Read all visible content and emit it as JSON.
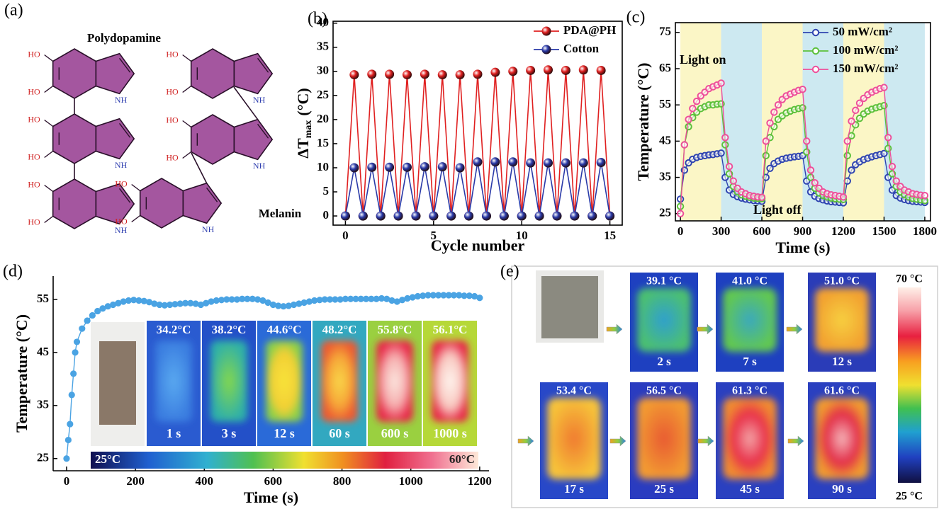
{
  "panel_a": {
    "label": "(a)",
    "name_1": "Polydopamine",
    "name_2": "Melanin",
    "hydroxyl": "HO",
    "amine": "NH"
  },
  "chart_data": [
    {
      "type": "line",
      "panel_label": "(b)",
      "x_label": "Cycle number",
      "y_label": {
        "symbol": "ΔT",
        "subscript": "max",
        "unit": "(°C)"
      },
      "x": [
        0,
        0.5,
        1,
        1.5,
        2,
        2.5,
        3,
        3.5,
        4,
        4.5,
        5,
        5.5,
        6,
        6.5,
        7,
        7.5,
        8,
        8.5,
        9,
        9.5,
        10,
        10.5,
        11,
        11.5,
        12,
        12.5,
        13,
        13.5,
        14,
        14.5,
        15
      ],
      "series": [
        {
          "name": "PDA@PH",
          "color": "#e02020",
          "values": [
            0,
            29.3,
            0,
            29.4,
            0,
            29.4,
            0,
            29.3,
            0,
            29.4,
            0,
            29.3,
            0,
            29.3,
            0,
            29.4,
            0,
            29.8,
            0,
            30,
            0,
            30.2,
            0,
            30.3,
            0,
            30.2,
            0,
            30.3,
            0,
            30.2,
            0
          ]
        },
        {
          "name": "Cotton",
          "color": "#2a3aa8",
          "values": [
            0,
            10,
            0,
            10.1,
            0,
            10.1,
            0,
            10.1,
            0,
            10.2,
            0,
            10.2,
            0,
            10,
            0,
            11.2,
            0,
            11.2,
            0,
            11.2,
            0,
            11,
            0,
            11,
            0,
            11,
            0,
            11,
            0,
            11.1,
            0
          ]
        }
      ],
      "xlim": [
        -0.7,
        15.7
      ],
      "xticks": [
        0,
        5,
        10,
        15
      ],
      "ylim": [
        -1.9,
        40.4
      ],
      "yticks": [
        0,
        5,
        10,
        15,
        20,
        25,
        30,
        35,
        40
      ],
      "legend": "upper right"
    },
    {
      "type": "line",
      "panel_label": "(c)",
      "x_label": "Time (s)",
      "y_label": "Temperature (°C)",
      "annotations": [
        "Light on",
        "Light off"
      ],
      "bands": [
        {
          "from": 0,
          "to": 300,
          "color": "#fbf6c6"
        },
        {
          "from": 300,
          "to": 600,
          "color": "#cde9f1"
        },
        {
          "from": 600,
          "to": 900,
          "color": "#fbf6c6"
        },
        {
          "from": 900,
          "to": 1200,
          "color": "#cde9f1"
        },
        {
          "from": 1200,
          "to": 1500,
          "color": "#fbf6c6"
        },
        {
          "from": 1500,
          "to": 1800,
          "color": "#cde9f1"
        }
      ],
      "x": [
        0,
        30,
        60,
        90,
        120,
        150,
        180,
        210,
        240,
        270,
        300,
        330,
        360,
        390,
        420,
        450,
        480,
        510,
        540,
        570,
        600,
        630,
        660,
        690,
        720,
        750,
        780,
        810,
        840,
        870,
        900,
        930,
        960,
        990,
        1020,
        1050,
        1080,
        1110,
        1140,
        1170,
        1200,
        1230,
        1260,
        1290,
        1320,
        1350,
        1380,
        1410,
        1440,
        1470,
        1500,
        1530,
        1560,
        1590,
        1620,
        1650,
        1680,
        1710,
        1740,
        1770,
        1800
      ],
      "series": [
        {
          "name": "50 mW/cm²",
          "color": "#2f44b0",
          "values": [
            29,
            37,
            39,
            40,
            40.5,
            40.8,
            41,
            41.2,
            41.3,
            41.5,
            41.7,
            35,
            31.5,
            30.3,
            29.7,
            29.3,
            29,
            28.8,
            28.6,
            28.5,
            28.4,
            35,
            37.5,
            38.8,
            39.5,
            40,
            40.3,
            40.5,
            40.7,
            40.8,
            41,
            34,
            31,
            29.8,
            29.2,
            28.8,
            28.5,
            28.3,
            28.2,
            28.1,
            28,
            34,
            37,
            38.5,
            39.3,
            39.9,
            40.3,
            40.7,
            41,
            41.3,
            41.6,
            35,
            31.5,
            30,
            29.3,
            28.9,
            28.6,
            28.4,
            28.3,
            28.2,
            28.1
          ]
        },
        {
          "name": "100 mW/cm²",
          "color": "#5cc03a",
          "values": [
            27,
            44,
            49,
            51.5,
            53,
            54,
            54.5,
            55,
            55,
            55.2,
            55.3,
            44,
            36,
            32.5,
            31,
            30.2,
            29.8,
            29.5,
            29.3,
            29.2,
            29.1,
            41,
            46,
            49,
            51,
            52,
            52.8,
            53.3,
            53.7,
            54,
            54.2,
            42,
            35,
            32,
            30.7,
            30,
            29.6,
            29.3,
            29.1,
            29,
            28.9,
            41,
            46.5,
            49.5,
            51.3,
            52.5,
            53.3,
            53.8,
            54.2,
            54.5,
            54.8,
            43,
            36,
            32.5,
            31,
            30.2,
            29.6,
            29.2,
            29,
            28.8,
            28.6
          ]
        },
        {
          "name": "150 mW/cm²",
          "color": "#ee4f9a",
          "values": [
            25,
            44,
            51,
            54,
            56,
            57.5,
            58.5,
            59.5,
            60,
            60.5,
            61,
            46,
            38,
            34,
            32,
            31,
            30.5,
            30,
            29.8,
            29.6,
            29.5,
            45,
            50,
            53,
            55,
            56.5,
            57.5,
            58,
            58.5,
            59,
            59.3,
            45,
            37,
            33.5,
            32,
            31,
            30.5,
            30.2,
            30,
            29.8,
            29.6,
            45,
            50.5,
            53.5,
            55.5,
            56.8,
            57.8,
            58.5,
            59,
            59.5,
            59.8,
            46,
            38,
            34,
            32.5,
            31.5,
            31,
            30.5,
            30.3,
            30.1,
            30
          ]
        }
      ],
      "xlim": [
        -37,
        1842
      ],
      "xticks": [
        0,
        300,
        600,
        900,
        1200,
        1500,
        1800
      ],
      "ylim": [
        23,
        77.7
      ],
      "yticks": [
        25,
        35,
        45,
        55,
        65,
        75
      ],
      "legend": "upper right"
    },
    {
      "type": "line",
      "panel_label": "(d)",
      "x_label": "Time (s)",
      "y_label": "Temperature (°C)",
      "x": [
        0,
        5,
        10,
        15,
        20,
        25,
        30,
        45,
        60,
        75,
        90,
        105,
        120,
        135,
        150,
        165,
        180,
        195,
        210,
        225,
        240,
        255,
        270,
        285,
        300,
        315,
        330,
        345,
        360,
        375,
        390,
        405,
        420,
        435,
        450,
        465,
        480,
        495,
        510,
        525,
        540,
        555,
        570,
        585,
        600,
        615,
        630,
        645,
        660,
        675,
        690,
        705,
        720,
        735,
        750,
        765,
        780,
        795,
        810,
        825,
        840,
        855,
        870,
        885,
        900,
        915,
        930,
        945,
        960,
        975,
        990,
        1005,
        1020,
        1035,
        1050,
        1065,
        1080,
        1095,
        1110,
        1125,
        1140,
        1155,
        1170,
        1185,
        1200
      ],
      "series": [
        {
          "color": "#4aa3e3",
          "values": [
            25,
            28.5,
            31.5,
            37,
            41,
            45,
            47,
            49.5,
            51,
            52,
            52.8,
            53.3,
            53.7,
            54,
            54.3,
            54.6,
            54.8,
            54.9,
            54.8,
            54.7,
            54.5,
            54.2,
            54,
            53.9,
            54,
            54.1,
            54.2,
            54.3,
            54.3,
            54.2,
            54,
            54.3,
            54.6,
            54.8,
            54.9,
            55,
            55,
            55,
            55.1,
            55.1,
            55.1,
            55,
            54.8,
            54.4,
            54,
            53.8,
            53.7,
            53.8,
            54,
            54.2,
            54.4,
            54.6,
            54.8,
            54.9,
            55,
            55,
            55,
            55,
            55.1,
            55.1,
            55.1,
            55.1,
            55.1,
            55.1,
            55.1,
            55.2,
            55.1,
            54.8,
            54.6,
            54.9,
            55.2,
            55.4,
            55.6,
            55.7,
            55.8,
            55.8,
            55.8,
            55.8,
            55.8,
            55.8,
            55.8,
            55.7,
            55.7,
            55.6,
            55.3
          ]
        }
      ],
      "xlim": [
        -39,
        1227
      ],
      "xticks": [
        0,
        200,
        400,
        600,
        800,
        1000,
        1200
      ],
      "ylim": [
        22.7,
        59.4
      ],
      "yticks": [
        25,
        35,
        45,
        55
      ],
      "thermal_images": [
        {
          "temperature": "34.2°C",
          "time": "1 s"
        },
        {
          "temperature": "38.2°C",
          "time": "3 s"
        },
        {
          "temperature": "44.6°C",
          "time": "12 s"
        },
        {
          "temperature": "48.2°C",
          "time": "60 s"
        },
        {
          "temperature": "55.8°C",
          "time": "600 s"
        },
        {
          "temperature": "56.1°C",
          "time": "1000 s"
        }
      ],
      "colorbar_labels": [
        "25°C",
        "60°C"
      ]
    }
  ],
  "panel_e": {
    "label": "(e)",
    "images": [
      {
        "temperature": "39.1 °C",
        "time": "2 s"
      },
      {
        "temperature": "41.0 °C",
        "time": "7 s"
      },
      {
        "temperature": "51.0 °C",
        "time": "12 s"
      },
      {
        "temperature": "53.4 °C",
        "time": "17 s"
      },
      {
        "temperature": "56.5 °C",
        "time": "25 s"
      },
      {
        "temperature": "61.3 °C",
        "time": "45 s"
      },
      {
        "temperature": "61.6 °C",
        "time": "90 s"
      }
    ],
    "colorbar_labels": [
      "70 °C",
      "25 °C"
    ]
  }
}
